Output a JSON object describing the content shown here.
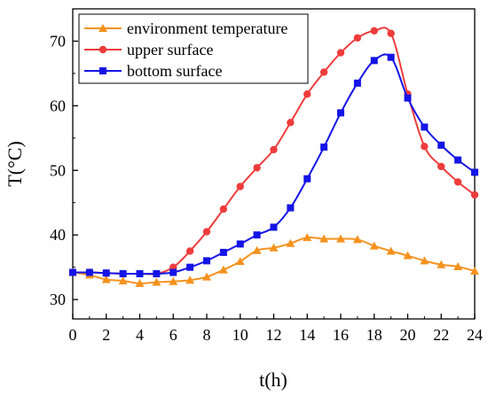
{
  "chart_data": {
    "type": "line",
    "xlabel": "t(h)",
    "ylabel": "T(°C)",
    "xlim": [
      0,
      24
    ],
    "ylim": [
      27,
      75
    ],
    "x_ticks": [
      0,
      2,
      4,
      6,
      8,
      10,
      12,
      14,
      16,
      18,
      20,
      22,
      24
    ],
    "y_ticks": [
      30,
      40,
      50,
      60,
      70
    ],
    "grid": false,
    "legend_position": "top-left",
    "series": [
      {
        "name": "environment temperature",
        "color": "#f5921e",
        "marker": "triangle",
        "x": [
          0,
          1,
          2,
          3,
          4,
          5,
          6,
          7,
          8,
          9,
          10,
          11,
          12,
          13,
          14,
          15,
          16,
          17,
          18,
          19,
          20,
          21,
          22,
          23,
          24
        ],
        "y": [
          34.2,
          33.8,
          33.1,
          32.9,
          32.5,
          32.7,
          32.8,
          33.0,
          33.5,
          34.6,
          35.9,
          37.6,
          38.0,
          38.7,
          39.6,
          39.4,
          39.4,
          39.3,
          38.3,
          37.5,
          36.8,
          36.0,
          35.4,
          35.1,
          34.4
        ]
      },
      {
        "name": "upper surface",
        "color": "#ee3c3c",
        "marker": "circle",
        "x": [
          0,
          1,
          2,
          3,
          4,
          5,
          6,
          7,
          8,
          9,
          10,
          11,
          12,
          13,
          14,
          15,
          16,
          17,
          18,
          19,
          20,
          21,
          22,
          23,
          24
        ],
        "y": [
          34.2,
          34.2,
          34.1,
          34.0,
          34.0,
          34.0,
          35.0,
          37.5,
          40.5,
          44.0,
          47.5,
          50.4,
          53.2,
          57.4,
          61.8,
          65.2,
          68.2,
          70.5,
          71.6,
          71.2,
          61.8,
          53.7,
          50.6,
          48.2,
          46.2
        ]
      },
      {
        "name": "bottom surface",
        "color": "#1414e6",
        "marker": "square",
        "x": [
          0,
          1,
          2,
          3,
          4,
          5,
          6,
          7,
          8,
          9,
          10,
          11,
          12,
          13,
          14,
          15,
          16,
          17,
          18,
          19,
          20,
          21,
          22,
          23,
          24
        ],
        "y": [
          34.2,
          34.2,
          34.1,
          34.0,
          34.0,
          34.0,
          34.2,
          35.0,
          36.0,
          37.3,
          38.6,
          40.0,
          41.2,
          44.2,
          48.7,
          53.6,
          58.9,
          63.5,
          67.0,
          67.5,
          61.2,
          56.7,
          53.9,
          51.6,
          49.7
        ]
      }
    ]
  }
}
